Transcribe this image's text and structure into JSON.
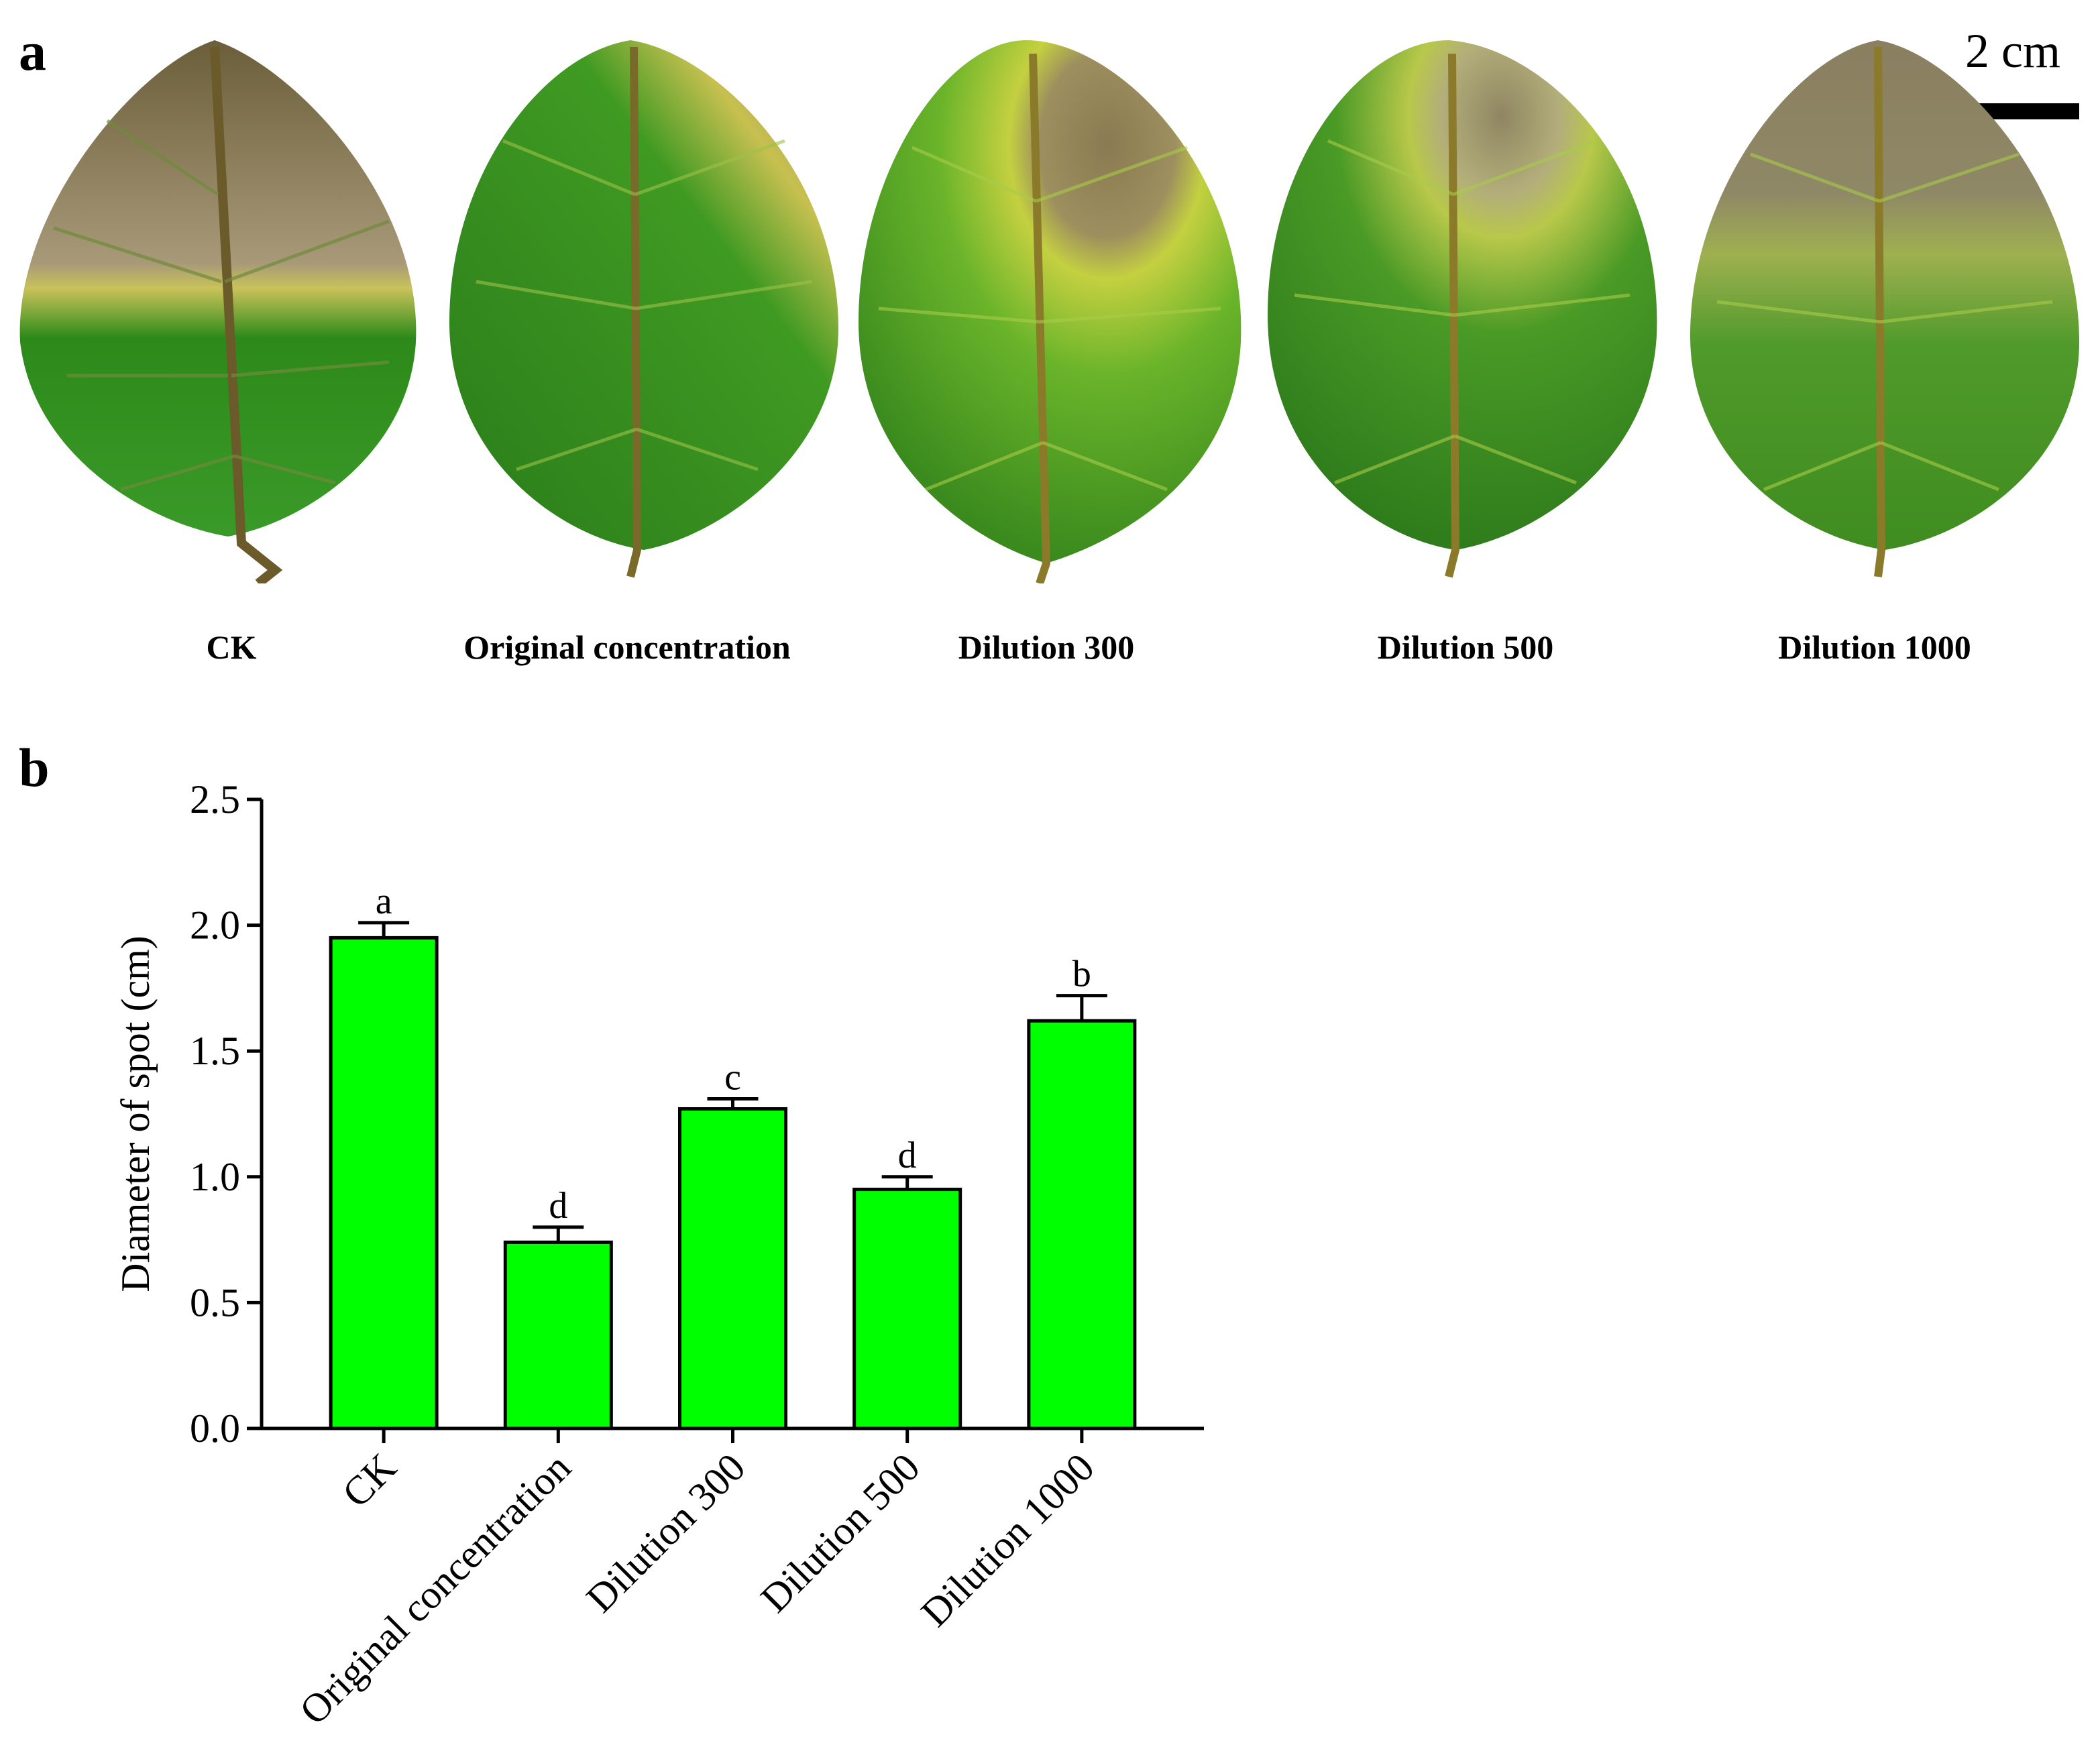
{
  "panel_a": {
    "label": "a",
    "scale_bar_label": "2 cm",
    "leaves": [
      {
        "caption": "CK"
      },
      {
        "caption": "Original concentration"
      },
      {
        "caption": "Dilution 300"
      },
      {
        "caption": "Dilution 500"
      },
      {
        "caption": "Dilution 1000"
      }
    ]
  },
  "panel_b": {
    "label": "b"
  },
  "colors": {
    "bar_fill": "#00ff00",
    "bar_stroke": "#000000",
    "leaf_green": "#2f8f1a",
    "lesion_brown": "#8a7a52"
  },
  "chart_data": {
    "type": "bar",
    "title": "",
    "xlabel": "",
    "ylabel": "Diameter of spot (cm)",
    "ylim": [
      0,
      2.5
    ],
    "yticks": [
      "0.0",
      "0.5",
      "1.0",
      "1.5",
      "2.0",
      "2.5"
    ],
    "categories": [
      "CK",
      "Original concentration",
      "Dilution 300",
      "Dilution 500",
      "Dilution 1000"
    ],
    "values": [
      1.95,
      0.74,
      1.27,
      0.95,
      1.62
    ],
    "errors": [
      0.06,
      0.06,
      0.04,
      0.05,
      0.1
    ],
    "significance": [
      "a",
      "d",
      "c",
      "d",
      "b"
    ]
  }
}
